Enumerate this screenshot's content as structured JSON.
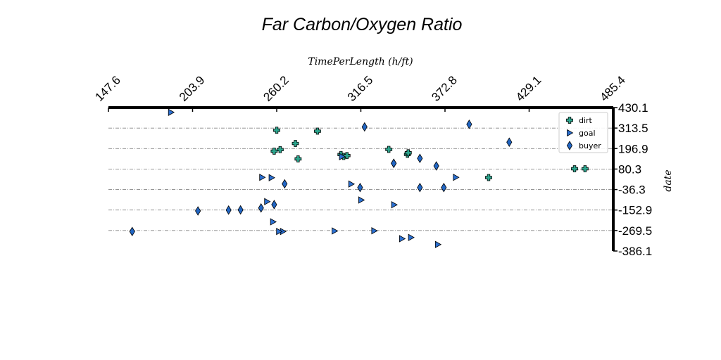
{
  "chart_data": {
    "type": "scatter",
    "title": "Far Carbon/Oxygen Ratio",
    "xlabel": "TimePerLength (h/ft)",
    "ylabel": "date",
    "xlim": [
      147.6,
      485.4
    ],
    "ylim": [
      -386.1,
      430.1
    ],
    "x_ticks": [
      "147.6",
      "203.9",
      "260.2",
      "316.5",
      "372.8",
      "429.1",
      "485.4"
    ],
    "y_ticks": [
      "430.1",
      "313.5",
      "196.9",
      "80.3",
      "-36.3",
      "-152.9",
      "-269.5",
      "-386.1"
    ],
    "grid": "horizontal dashed",
    "x_axis_position": "top",
    "y_axis_position": "right",
    "legend_position": "top-right",
    "series": [
      {
        "name": "dirt",
        "marker": "plus",
        "color": "#2ca58d",
        "x": [
          260.2,
          287.5,
          258.5,
          262.5,
          272.7,
          274.5,
          303.2,
          305.0,
          307.2,
          335.2,
          347.7,
          348.2,
          402.0,
          459.5,
          466.5
        ],
        "y": [
          301.0,
          296.0,
          182.0,
          191.0,
          226.0,
          138.0,
          163.0,
          152.0,
          157.0,
          192.0,
          164.0,
          173.0,
          32.0,
          82.0,
          82.0
        ]
      },
      {
        "name": "goal",
        "marker": "triangle-right",
        "color": "#2a6fd1",
        "x": [
          189.4,
          250.4,
          256.7,
          253.7,
          257.7,
          264.3,
          303.8,
          310.0,
          316.7,
          338.7,
          350.0,
          368.0,
          380.0,
          261.7,
          298.9,
          325.4,
          344.0
        ],
        "y": [
          403.0,
          33.0,
          31.0,
          -105.0,
          -220.0,
          -275.0,
          151.0,
          -5.0,
          -96.0,
          -123.0,
          -309.0,
          -349.0,
          33.0,
          -275.0,
          -272.0,
          -271.0,
          -316.0
        ]
      },
      {
        "name": "buyer",
        "marker": "diamond",
        "color": "#2166c4",
        "x": [
          163.5,
          207.5,
          228.0,
          236.0,
          249.7,
          258.5,
          265.5,
          316.0,
          319.0,
          338.5,
          367.0,
          372.0,
          389.0,
          415.8,
          338.5,
          356.0,
          356.0
        ],
        "y": [
          -275.0,
          -158.0,
          -153.0,
          -152.0,
          -141.0,
          -122.0,
          -4.0,
          -25.0,
          320.0,
          113.0,
          98.0,
          -25.0,
          335.0,
          233.0,
          113.0,
          141.0,
          -25.0
        ]
      }
    ]
  }
}
